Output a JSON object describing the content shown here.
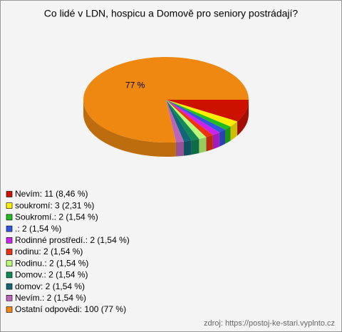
{
  "chart_data": {
    "type": "pie3d",
    "title": "Co lidé v LDN, hospicu a Domově pro seniory postrádají?",
    "categories": [
      "Nevím: 11 (8,46 %)",
      "soukromí: 3 (2,31 %)",
      "Soukromí.: 2 (1,54 %)",
      ".: 2 (1,54 %)",
      "Rodinné prostředí.: 2 (1,54 %)",
      "rodinu: 2 (1,54 %)",
      "Rodinu.: 2 (1,54 %)",
      "Domov.: 2 (1,54 %)",
      "domov: 2 (1,54 %)",
      "Nevím.: 2 (1,54 %)",
      "Ostatní odpovědi: 100 (77 %)"
    ],
    "values": [
      11,
      3,
      2,
      2,
      2,
      2,
      2,
      2,
      2,
      2,
      100
    ],
    "value_labels": [
      null,
      null,
      null,
      null,
      null,
      null,
      null,
      null,
      null,
      null,
      "77 %"
    ],
    "colors": [
      "#cc1100",
      "#ffee00",
      "#22bb22",
      "#3355dd",
      "#cc22ee",
      "#ee3311",
      "#bbff77",
      "#118855",
      "#116677",
      "#bb66bb",
      "#ee8811"
    ],
    "source": "zdroj: https://postoj-ke-stari.vyplnto.cz"
  }
}
